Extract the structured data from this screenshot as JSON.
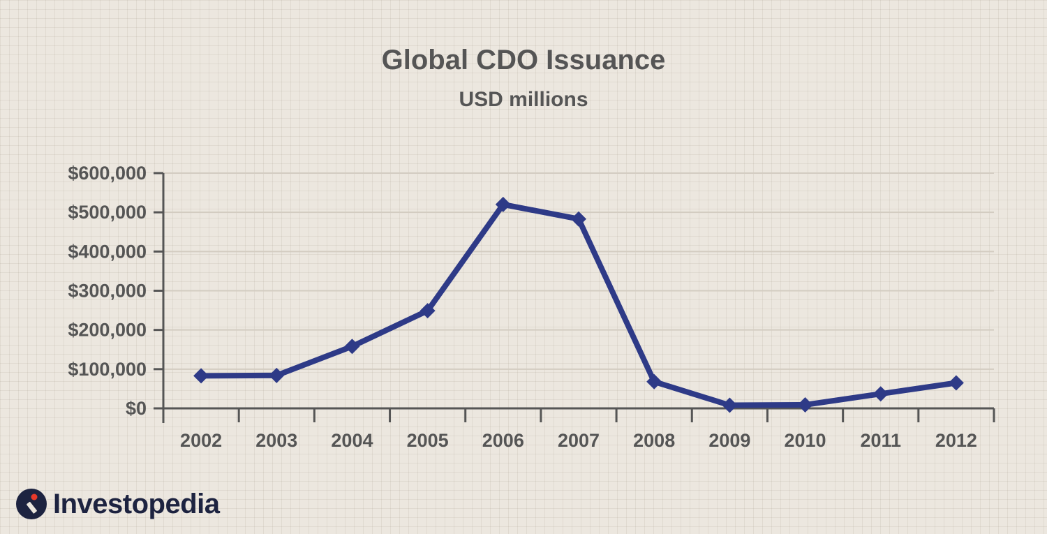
{
  "chart_data": {
    "type": "line",
    "title": "Global CDO Issuance",
    "subtitle": "USD millions",
    "xlabel": "",
    "ylabel": "",
    "categories": [
      "2002",
      "2003",
      "2004",
      "2005",
      "2006",
      "2007",
      "2008",
      "2009",
      "2010",
      "2011",
      "2012"
    ],
    "series": [
      {
        "values": [
          83000,
          84000,
          158000,
          249000,
          520000,
          483000,
          68000,
          8000,
          9000,
          37000,
          65000
        ],
        "color": "#2e3a87",
        "marker": "diamond"
      }
    ],
    "ylim": [
      0,
      600000
    ],
    "yticks": [
      0,
      100000,
      200000,
      300000,
      400000,
      500000,
      600000
    ],
    "ytick_labels": [
      "$0",
      "$100,000",
      "$200,000",
      "$300,000",
      "$400,000",
      "$500,000",
      "$600,000"
    ],
    "grid": true,
    "legend": "none"
  },
  "brand": {
    "name": "Investopedia",
    "mark_color": "#1d2340",
    "accent_color": "#e8392a"
  }
}
